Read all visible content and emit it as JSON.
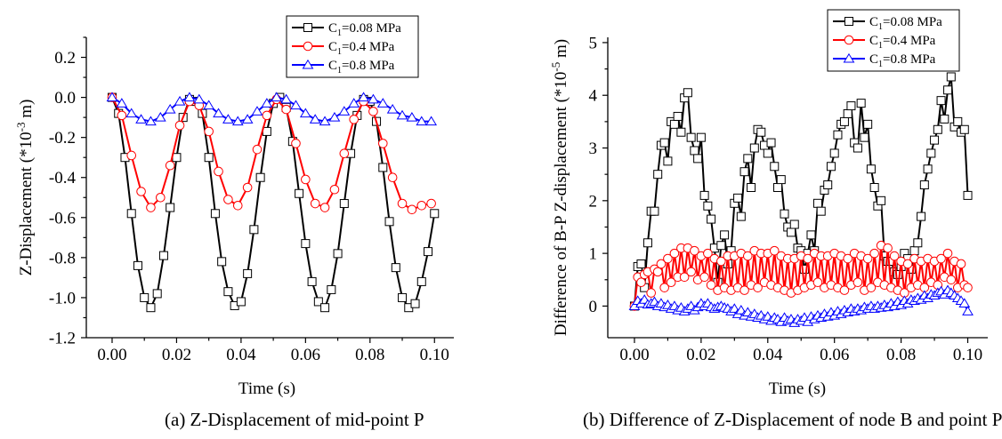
{
  "colors": {
    "black": "#000000",
    "red": "#ff0000",
    "blue": "#0000ff"
  },
  "chart_data": [
    {
      "type": "line",
      "caption": "(a) Z-Displacement of mid-point P",
      "xlabel": "Time (s)",
      "ylabel_main": "Z-Displacement (*10",
      "ylabel_exp": "-3",
      "ylabel_tail": " m)",
      "xlim": [
        -0.008,
        0.106
      ],
      "ylim": [
        -1.2,
        0.3
      ],
      "xticks": [
        0.0,
        0.02,
        0.04,
        0.06,
        0.08,
        0.1
      ],
      "xtick_labels": [
        "0.00",
        "0.02",
        "0.04",
        "0.06",
        "0.08",
        "0.10"
      ],
      "yticks": [
        0.2,
        0.0,
        -0.2,
        -0.4,
        -0.6,
        -0.8,
        -1.0,
        -1.2
      ],
      "ytick_labels": [
        "0.2",
        "0.0",
        "-0.2",
        "-0.4",
        "-0.6",
        "-0.8",
        "-1.0",
        "-1.2"
      ],
      "legend_position": "top-right",
      "series": [
        {
          "name": "C1=0.08 MPa",
          "legend_main": "C",
          "legend_sub": "1",
          "legend_tail": "=0.08 MPa",
          "color": "#000000",
          "marker": "square",
          "x": [
            0.0,
            0.002,
            0.004,
            0.006,
            0.008,
            0.01,
            0.012,
            0.014,
            0.016,
            0.018,
            0.02,
            0.022,
            0.024,
            0.026,
            0.028,
            0.03,
            0.032,
            0.034,
            0.036,
            0.038,
            0.04,
            0.042,
            0.044,
            0.046,
            0.048,
            0.05,
            0.052,
            0.054,
            0.056,
            0.058,
            0.06,
            0.062,
            0.064,
            0.066,
            0.068,
            0.07,
            0.072,
            0.074,
            0.076,
            0.078,
            0.08,
            0.082,
            0.084,
            0.086,
            0.088,
            0.09,
            0.092,
            0.094,
            0.096,
            0.098,
            0.1
          ],
          "y": [
            0.0,
            -0.08,
            -0.3,
            -0.58,
            -0.84,
            -1.0,
            -1.05,
            -0.98,
            -0.79,
            -0.55,
            -0.3,
            -0.1,
            -0.01,
            -0.02,
            -0.08,
            -0.3,
            -0.58,
            -0.82,
            -0.97,
            -1.04,
            -1.02,
            -0.88,
            -0.66,
            -0.4,
            -0.17,
            -0.03,
            0.0,
            -0.05,
            -0.22,
            -0.48,
            -0.73,
            -0.92,
            -1.02,
            -1.05,
            -0.96,
            -0.78,
            -0.53,
            -0.28,
            -0.09,
            -0.01,
            -0.02,
            -0.12,
            -0.35,
            -0.62,
            -0.85,
            -1.0,
            -1.05,
            -1.03,
            -0.92,
            -0.77,
            -0.58
          ]
        },
        {
          "name": "C1=0.4 MPa",
          "legend_main": "C",
          "legend_sub": "1",
          "legend_tail": "=0.4 MPa",
          "color": "#ff0000",
          "marker": "circle",
          "x": [
            0.0,
            0.003,
            0.006,
            0.009,
            0.012,
            0.015,
            0.018,
            0.021,
            0.024,
            0.027,
            0.03,
            0.033,
            0.036,
            0.039,
            0.042,
            0.045,
            0.048,
            0.051,
            0.054,
            0.057,
            0.06,
            0.063,
            0.066,
            0.069,
            0.072,
            0.075,
            0.078,
            0.081,
            0.084,
            0.087,
            0.09,
            0.093,
            0.096,
            0.099
          ],
          "y": [
            0.0,
            -0.09,
            -0.29,
            -0.47,
            -0.55,
            -0.5,
            -0.34,
            -0.14,
            -0.02,
            -0.04,
            -0.17,
            -0.37,
            -0.51,
            -0.54,
            -0.45,
            -0.26,
            -0.09,
            -0.01,
            -0.06,
            -0.23,
            -0.41,
            -0.53,
            -0.55,
            -0.46,
            -0.28,
            -0.11,
            -0.02,
            -0.07,
            -0.23,
            -0.4,
            -0.53,
            -0.56,
            -0.54,
            -0.53
          ]
        },
        {
          "name": "C1=0.8 MPa",
          "legend_main": "C",
          "legend_sub": "1",
          "legend_tail": "=0.8 MPa",
          "color": "#0000ff",
          "marker": "triangle",
          "x": [
            0.0,
            0.003,
            0.006,
            0.009,
            0.012,
            0.015,
            0.018,
            0.021,
            0.024,
            0.027,
            0.03,
            0.033,
            0.036,
            0.039,
            0.042,
            0.045,
            0.048,
            0.051,
            0.054,
            0.057,
            0.06,
            0.063,
            0.066,
            0.069,
            0.072,
            0.075,
            0.078,
            0.081,
            0.084,
            0.087,
            0.09,
            0.093,
            0.096,
            0.099
          ],
          "y": [
            0.0,
            -0.03,
            -0.08,
            -0.11,
            -0.12,
            -0.1,
            -0.06,
            -0.02,
            0.0,
            -0.01,
            -0.04,
            -0.08,
            -0.11,
            -0.12,
            -0.11,
            -0.07,
            -0.03,
            0.0,
            -0.01,
            -0.04,
            -0.08,
            -0.11,
            -0.12,
            -0.1,
            -0.07,
            -0.03,
            0.0,
            -0.01,
            -0.03,
            -0.06,
            -0.09,
            -0.1,
            -0.12,
            -0.12
          ]
        }
      ]
    },
    {
      "type": "line",
      "caption": "(b) Difference of Z-Displacement of node B and point P",
      "xlabel": "Time (s)",
      "ylabel_main": "Difference of B-P Z-displacement (*10",
      "ylabel_exp": "-5",
      "ylabel_tail": " m)",
      "xlim": [
        -0.008,
        0.106
      ],
      "ylim": [
        -0.6,
        5.1
      ],
      "xticks": [
        0.0,
        0.02,
        0.04,
        0.06,
        0.08,
        0.1
      ],
      "xtick_labels": [
        "0.00",
        "0.02",
        "0.04",
        "0.06",
        "0.08",
        "0.10"
      ],
      "yticks": [
        0,
        1,
        2,
        3,
        4,
        5
      ],
      "ytick_labels": [
        "0",
        "1",
        "2",
        "3",
        "4",
        "5"
      ],
      "legend_position": "top-right",
      "series": [
        {
          "name": "C1=0.08 MPa",
          "legend_main": "C",
          "legend_sub": "1",
          "legend_tail": "=0.08 MPa",
          "color": "#000000",
          "marker": "square",
          "x": [
            0.0,
            0.001,
            0.002,
            0.003,
            0.004,
            0.005,
            0.006,
            0.007,
            0.008,
            0.009,
            0.01,
            0.011,
            0.012,
            0.013,
            0.014,
            0.015,
            0.016,
            0.017,
            0.018,
            0.019,
            0.02,
            0.021,
            0.022,
            0.023,
            0.024,
            0.025,
            0.026,
            0.027,
            0.028,
            0.029,
            0.03,
            0.031,
            0.032,
            0.033,
            0.034,
            0.035,
            0.036,
            0.037,
            0.038,
            0.039,
            0.04,
            0.041,
            0.042,
            0.043,
            0.044,
            0.045,
            0.046,
            0.047,
            0.048,
            0.049,
            0.05,
            0.051,
            0.052,
            0.053,
            0.054,
            0.055,
            0.056,
            0.057,
            0.058,
            0.059,
            0.06,
            0.061,
            0.062,
            0.063,
            0.064,
            0.065,
            0.066,
            0.067,
            0.068,
            0.069,
            0.07,
            0.071,
            0.072,
            0.073,
            0.074,
            0.075,
            0.076,
            0.077,
            0.078,
            0.079,
            0.08,
            0.081,
            0.082,
            0.083,
            0.084,
            0.085,
            0.086,
            0.087,
            0.088,
            0.089,
            0.09,
            0.091,
            0.092,
            0.093,
            0.094,
            0.095,
            0.096,
            0.097,
            0.098,
            0.099,
            0.1
          ],
          "y": [
            0.0,
            0.75,
            0.8,
            0.35,
            1.2,
            1.8,
            1.8,
            2.5,
            3.05,
            3.1,
            2.75,
            3.5,
            3.45,
            3.6,
            3.3,
            3.95,
            4.05,
            3.2,
            2.95,
            2.8,
            3.2,
            2.1,
            1.9,
            1.65,
            1.1,
            0.45,
            1.15,
            1.35,
            0.8,
            1.05,
            1.95,
            2.05,
            1.7,
            2.55,
            2.8,
            2.25,
            3.0,
            3.35,
            3.3,
            3.05,
            2.9,
            3.1,
            2.65,
            2.25,
            2.4,
            1.75,
            1.5,
            1.4,
            1.55,
            1.1,
            1.05,
            0.7,
            1.0,
            1.35,
            1.05,
            1.95,
            1.8,
            2.2,
            2.3,
            2.65,
            2.9,
            3.25,
            3.45,
            3.5,
            3.65,
            3.8,
            3.1,
            3.0,
            3.85,
            3.2,
            3.45,
            2.6,
            2.25,
            1.9,
            2.0,
            0.95,
            0.85,
            0.85,
            0.65,
            0.6,
            0.75,
            1.0,
            0.9,
            0.7,
            1.05,
            1.2,
            1.7,
            2.3,
            2.6,
            2.9,
            3.15,
            3.35,
            3.9,
            3.55,
            4.1,
            4.35,
            3.4,
            3.5,
            3.3,
            3.35,
            2.1
          ]
        },
        {
          "name": "C1=0.4 MPa",
          "legend_main": "C",
          "legend_sub": "1",
          "legend_tail": "=0.4 MPa",
          "color": "#ff0000",
          "marker": "circle",
          "x": [
            0.0,
            0.001,
            0.002,
            0.003,
            0.004,
            0.005,
            0.006,
            0.007,
            0.008,
            0.009,
            0.01,
            0.011,
            0.012,
            0.013,
            0.014,
            0.015,
            0.016,
            0.017,
            0.018,
            0.019,
            0.02,
            0.021,
            0.022,
            0.023,
            0.024,
            0.025,
            0.026,
            0.027,
            0.028,
            0.029,
            0.03,
            0.031,
            0.032,
            0.033,
            0.034,
            0.035,
            0.036,
            0.037,
            0.038,
            0.039,
            0.04,
            0.041,
            0.042,
            0.043,
            0.044,
            0.045,
            0.046,
            0.047,
            0.048,
            0.049,
            0.05,
            0.051,
            0.052,
            0.053,
            0.054,
            0.055,
            0.056,
            0.057,
            0.058,
            0.059,
            0.06,
            0.061,
            0.062,
            0.063,
            0.064,
            0.065,
            0.066,
            0.067,
            0.068,
            0.069,
            0.07,
            0.071,
            0.072,
            0.073,
            0.074,
            0.075,
            0.076,
            0.077,
            0.078,
            0.079,
            0.08,
            0.081,
            0.082,
            0.083,
            0.084,
            0.085,
            0.086,
            0.087,
            0.088,
            0.089,
            0.09,
            0.091,
            0.092,
            0.093,
            0.094,
            0.095,
            0.096,
            0.097,
            0.098,
            0.099,
            0.1
          ],
          "y": [
            0.0,
            0.55,
            0.45,
            0.6,
            0.65,
            0.25,
            0.7,
            0.65,
            0.8,
            0.35,
            0.9,
            0.45,
            1.0,
            0.55,
            1.1,
            0.55,
            1.1,
            0.65,
            1.05,
            0.5,
            0.95,
            0.55,
            1.0,
            0.4,
            0.9,
            0.3,
            0.85,
            0.35,
            0.95,
            0.3,
            0.95,
            0.35,
            1.0,
            0.3,
            0.95,
            0.4,
            1.05,
            0.35,
            1.0,
            0.45,
            1.0,
            0.4,
            1.05,
            0.35,
            0.95,
            0.3,
            0.9,
            0.25,
            0.9,
            0.3,
            0.95,
            0.35,
            0.9,
            0.4,
            1.0,
            0.45,
            0.95,
            0.35,
            0.95,
            0.4,
            1.0,
            0.35,
            0.95,
            0.3,
            0.9,
            0.4,
            1.0,
            0.45,
            0.95,
            0.3,
            0.9,
            0.35,
            1.0,
            0.45,
            1.15,
            0.4,
            1.1,
            0.35,
            0.95,
            0.3,
            0.85,
            0.25,
            0.8,
            0.35,
            0.9,
            0.4,
            0.85,
            0.35,
            0.9,
            0.45,
            0.85,
            0.4,
            0.9,
            0.55,
            1.0,
            0.5,
            0.85,
            0.35,
            0.8,
            0.4,
            0.35
          ]
        },
        {
          "name": "C1=0.8 MPa",
          "legend_main": "C",
          "legend_sub": "1",
          "legend_tail": "=0.8 MPa",
          "color": "#0000ff",
          "marker": "triangle",
          "x": [
            0.0,
            0.001,
            0.002,
            0.003,
            0.004,
            0.005,
            0.006,
            0.007,
            0.008,
            0.009,
            0.01,
            0.011,
            0.012,
            0.013,
            0.014,
            0.015,
            0.016,
            0.017,
            0.018,
            0.019,
            0.02,
            0.021,
            0.022,
            0.023,
            0.024,
            0.025,
            0.026,
            0.027,
            0.028,
            0.029,
            0.03,
            0.031,
            0.032,
            0.033,
            0.034,
            0.035,
            0.036,
            0.037,
            0.038,
            0.039,
            0.04,
            0.041,
            0.042,
            0.043,
            0.044,
            0.045,
            0.046,
            0.047,
            0.048,
            0.049,
            0.05,
            0.051,
            0.052,
            0.053,
            0.054,
            0.055,
            0.056,
            0.057,
            0.058,
            0.059,
            0.06,
            0.061,
            0.062,
            0.063,
            0.064,
            0.065,
            0.066,
            0.067,
            0.068,
            0.069,
            0.07,
            0.071,
            0.072,
            0.073,
            0.074,
            0.075,
            0.076,
            0.077,
            0.078,
            0.079,
            0.08,
            0.081,
            0.082,
            0.083,
            0.084,
            0.085,
            0.086,
            0.087,
            0.088,
            0.089,
            0.09,
            0.091,
            0.092,
            0.093,
            0.094,
            0.095,
            0.096,
            0.097,
            0.098,
            0.099,
            0.1
          ],
          "y": [
            0.0,
            0.1,
            0.05,
            0.12,
            0.03,
            0.05,
            0.08,
            0.0,
            0.05,
            -0.02,
            0.02,
            -0.05,
            0.0,
            -0.08,
            -0.03,
            -0.1,
            -0.05,
            0.0,
            -0.08,
            -0.02,
            0.05,
            0.0,
            0.05,
            -0.02,
            -0.05,
            -0.02,
            0.0,
            -0.03,
            -0.05,
            -0.1,
            -0.05,
            -0.15,
            -0.08,
            -0.18,
            -0.12,
            -0.2,
            -0.15,
            -0.22,
            -0.18,
            -0.25,
            -0.2,
            -0.28,
            -0.22,
            -0.25,
            -0.3,
            -0.22,
            -0.28,
            -0.25,
            -0.32,
            -0.25,
            -0.28,
            -0.22,
            -0.3,
            -0.2,
            -0.25,
            -0.18,
            -0.22,
            -0.15,
            -0.2,
            -0.12,
            -0.18,
            -0.1,
            -0.15,
            -0.08,
            -0.12,
            -0.05,
            -0.1,
            -0.05,
            -0.08,
            -0.02,
            -0.05,
            0.0,
            -0.05,
            0.0,
            -0.03,
            0.02,
            -0.02,
            0.05,
            0.0,
            0.08,
            0.02,
            0.1,
            0.05,
            0.12,
            0.1,
            0.15,
            0.12,
            0.2,
            0.15,
            0.22,
            0.2,
            0.25,
            0.28,
            0.22,
            0.3,
            0.25,
            0.2,
            0.15,
            0.1,
            0.05,
            -0.1
          ]
        }
      ]
    }
  ]
}
